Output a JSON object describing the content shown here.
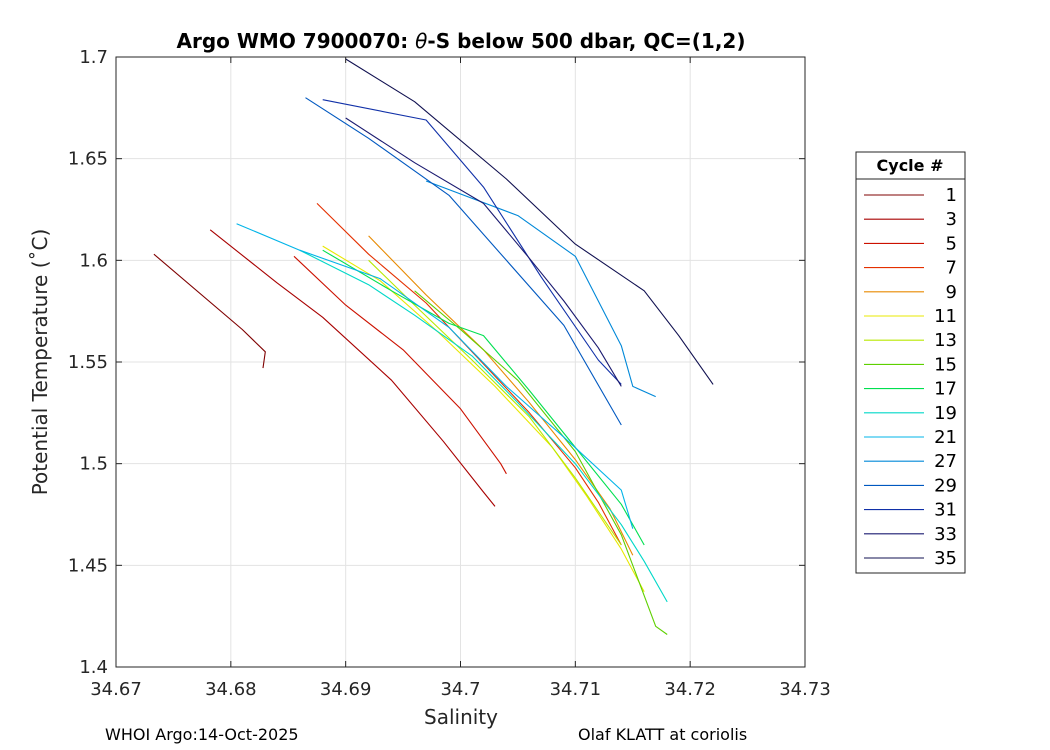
{
  "chart_data": {
    "type": "line",
    "title": "Argo WMO 7900070: θ-S below 500 dbar,  QC=(1,2)",
    "title_parts": [
      "Argo WMO 7900070: ",
      "θ",
      "-S below 500 dbar,  QC=(1,2)"
    ],
    "xlabel": "Salinity",
    "ylabel": "Potential Temperature (˚C)",
    "xlim": [
      34.67,
      34.73
    ],
    "ylim": [
      1.4,
      1.7
    ],
    "xticks": [
      34.67,
      34.68,
      34.69,
      34.7,
      34.71,
      34.72,
      34.73
    ],
    "xtick_labels": [
      "34.67",
      "34.68",
      "34.69",
      "34.7",
      "34.71",
      "34.72",
      "34.73"
    ],
    "yticks": [
      1.4,
      1.45,
      1.5,
      1.55,
      1.6,
      1.65,
      1.7
    ],
    "ytick_labels": [
      "1.4",
      "1.45",
      "1.5",
      "1.55",
      "1.6",
      "1.65",
      "1.7"
    ],
    "grid": true,
    "legend_title": "Cycle #",
    "legend_position": "right",
    "series": [
      {
        "name": "1",
        "color": "#7f0000",
        "x": [
          34.6733,
          34.681,
          34.683,
          34.6828
        ],
        "y": [
          1.603,
          1.566,
          1.555,
          1.547
        ]
      },
      {
        "name": "3",
        "color": "#a80000",
        "x": [
          34.6782,
          34.684,
          34.688,
          34.694,
          34.6985,
          34.702,
          34.703
        ],
        "y": [
          1.615,
          1.589,
          1.572,
          1.541,
          1.511,
          1.486,
          1.479
        ]
      },
      {
        "name": "5",
        "color": "#cc1100",
        "x": [
          34.6855,
          34.69,
          34.695,
          34.7,
          34.7035,
          34.704
        ],
        "y": [
          1.602,
          1.578,
          1.556,
          1.527,
          1.5,
          1.495
        ]
      },
      {
        "name": "7",
        "color": "#e43000",
        "x": [
          34.6875,
          34.692,
          34.697,
          34.701,
          34.706,
          34.71,
          34.712,
          34.714
        ],
        "y": [
          1.628,
          1.603,
          1.579,
          1.555,
          1.525,
          1.498,
          1.481,
          1.46
        ]
      },
      {
        "name": "9",
        "color": "#e88a00",
        "x": [
          34.692,
          34.697,
          34.702,
          34.706,
          34.71,
          34.713,
          34.715
        ],
        "y": [
          1.612,
          1.583,
          1.556,
          1.53,
          1.502,
          1.478,
          1.455
        ]
      },
      {
        "name": "11",
        "color": "#e8e800",
        "x": [
          34.688,
          34.693,
          34.698,
          34.703,
          34.708,
          34.711,
          34.714,
          34.716
        ],
        "y": [
          1.607,
          1.59,
          1.565,
          1.538,
          1.508,
          1.484,
          1.458,
          1.437
        ]
      },
      {
        "name": "13",
        "color": "#b8e800",
        "x": [
          34.692,
          34.696,
          34.701,
          34.706,
          34.71,
          34.714
        ],
        "y": [
          1.6,
          1.578,
          1.551,
          1.523,
          1.493,
          1.46
        ]
      },
      {
        "name": "15",
        "color": "#5ed000",
        "x": [
          34.696,
          34.7,
          34.705,
          34.71,
          34.714,
          34.717,
          34.718
        ],
        "y": [
          1.585,
          1.566,
          1.541,
          1.506,
          1.465,
          1.42,
          1.416
        ]
      },
      {
        "name": "17",
        "color": "#00e050",
        "x": [
          34.688,
          34.694,
          34.699,
          34.702,
          34.706,
          34.71,
          34.714,
          34.716
        ],
        "y": [
          1.605,
          1.585,
          1.569,
          1.563,
          1.536,
          1.508,
          1.48,
          1.46
        ]
      },
      {
        "name": "19",
        "color": "#00d8c8",
        "x": [
          34.686,
          34.692,
          34.696,
          34.701,
          34.705,
          34.71,
          34.714,
          34.716,
          34.718
        ],
        "y": [
          1.605,
          1.588,
          1.573,
          1.553,
          1.53,
          1.5,
          1.47,
          1.452,
          1.432
        ]
      },
      {
        "name": "21",
        "color": "#00b4e8",
        "x": [
          34.6805,
          34.686,
          34.693,
          34.699,
          34.704,
          34.709,
          34.714,
          34.715
        ],
        "y": [
          1.618,
          1.605,
          1.591,
          1.567,
          1.538,
          1.513,
          1.487,
          1.468
        ]
      },
      {
        "name": "27",
        "color": "#0088d8",
        "x": [
          34.697,
          34.705,
          34.71,
          34.714,
          34.715,
          34.717
        ],
        "y": [
          1.639,
          1.622,
          1.602,
          1.558,
          1.538,
          1.533
        ]
      },
      {
        "name": "29",
        "color": "#0058c0",
        "x": [
          34.6865,
          34.692,
          34.699,
          34.704,
          34.709,
          34.714
        ],
        "y": [
          1.68,
          1.66,
          1.632,
          1.6,
          1.568,
          1.519
        ]
      },
      {
        "name": "31",
        "color": "#1030a8",
        "x": [
          34.688,
          34.697,
          34.702,
          34.707,
          34.712,
          34.714
        ],
        "y": [
          1.679,
          1.669,
          1.636,
          1.592,
          1.551,
          1.539
        ]
      },
      {
        "name": "33",
        "color": "#1a1a70",
        "x": [
          34.69,
          34.696,
          34.702,
          34.706,
          34.709,
          34.712,
          34.714
        ],
        "y": [
          1.67,
          1.648,
          1.628,
          1.601,
          1.58,
          1.557,
          1.538
        ]
      },
      {
        "name": "35",
        "color": "#101050",
        "x": [
          34.69,
          34.696,
          34.704,
          34.71,
          34.716,
          34.719,
          34.722
        ],
        "y": [
          1.699,
          1.678,
          1.64,
          1.608,
          1.585,
          1.563,
          1.539
        ]
      }
    ]
  },
  "footer": {
    "left": "WHOI Argo:14-Oct-2025",
    "right": "Olaf KLATT at coriolis"
  }
}
